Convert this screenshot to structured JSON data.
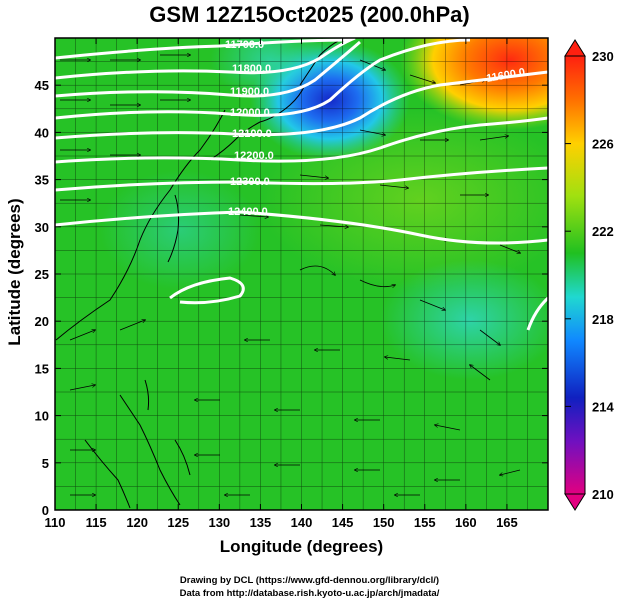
{
  "title": "GSM 12Z15Oct2025 (200.0hPa)",
  "x_axis": {
    "label": "Longitude (degrees)",
    "min": 110,
    "max": 170,
    "ticks": [
      "110",
      "115",
      "120",
      "125",
      "130",
      "135",
      "140",
      "145",
      "150",
      "155",
      "160",
      "165"
    ]
  },
  "y_axis": {
    "label": "Latitude  (degrees)",
    "min": 0,
    "max": 50,
    "ticks": [
      "0",
      "5",
      "10",
      "15",
      "20",
      "25",
      "30",
      "35",
      "40",
      "45"
    ]
  },
  "colorbar": {
    "min": 210,
    "max": 230,
    "labels": [
      "230",
      "226",
      "222",
      "218",
      "214",
      "210"
    ],
    "stops": [
      "#e20080",
      "#1020c0",
      "#1088ff",
      "#20d8d0",
      "#20c020",
      "#a0e010",
      "#ffd000",
      "#ff7000",
      "#ff2010"
    ]
  },
  "contours": [
    {
      "label": "11700.0"
    },
    {
      "label": "11800.0"
    },
    {
      "label": "11900.0"
    },
    {
      "label": "12000.0"
    },
    {
      "label": "12100.0"
    },
    {
      "label": "12200.0"
    },
    {
      "label": "12300.0"
    },
    {
      "label": "12400.0"
    },
    {
      "label": "11600.0"
    }
  ],
  "credits": {
    "line1": "Drawing by DCL (https://www.gfd-dennou.org/library/dcl/)",
    "line2": "Data from http://database.rish.kyoto-u.ac.jp/arch/jmadata/"
  },
  "chart_data": {
    "type": "heatmap",
    "title": "GSM 12Z15Oct2025 (200.0hPa)",
    "xlabel": "Longitude (degrees)",
    "ylabel": "Latitude  (degrees)",
    "xlim": [
      110,
      170
    ],
    "ylim": [
      0,
      50
    ],
    "field": "temperature at 200 hPa (K), shaded; geopotential height contours (m); wind streamlines",
    "colorbar_range": [
      210,
      230
    ],
    "contour_levels": [
      11600,
      11700,
      11800,
      11900,
      12000,
      12100,
      12200,
      12300,
      12400
    ],
    "features": [
      {
        "name": "cold anomaly",
        "lon": 143,
        "lat": 43,
        "value_approx": 215
      },
      {
        "name": "warm anomaly",
        "lon": 165,
        "lat": 47,
        "value_approx": 229
      },
      {
        "name": "anticyclone",
        "lon": 130,
        "lat": 25
      }
    ]
  }
}
